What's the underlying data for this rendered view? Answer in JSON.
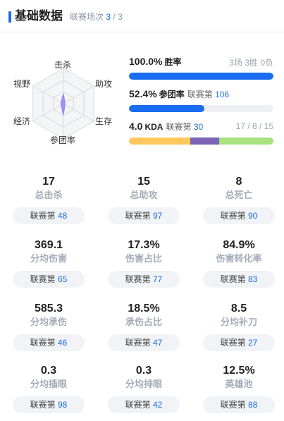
{
  "header": {
    "title": "基础数据",
    "subtitle_label": "联赛场次",
    "subtitle_current": "3",
    "subtitle_sep": "/",
    "subtitle_total": "3"
  },
  "radar": {
    "axes": [
      "击杀",
      "助攻",
      "生存",
      "参团率",
      "经济",
      "视野"
    ],
    "values": [
      0.28,
      0.05,
      0.05,
      0.32,
      0.08,
      0.08
    ],
    "fill_color": "#8f84f0"
  },
  "metrics": {
    "winrate": {
      "value": "100.0%",
      "name": "胜率",
      "detail": "3场 3胜 0负",
      "fraction": 1.0,
      "color": "#1a6cf0"
    },
    "participation": {
      "value": "52.4%",
      "name": "参团率",
      "rank_label": "联赛第",
      "rank": "106",
      "fraction": 0.524,
      "color": "#1a6cf0"
    },
    "kda": {
      "value": "4.0",
      "name": "KDA",
      "rank_label": "联赛第",
      "rank": "30",
      "detail": "17 / 8 / 15",
      "kills": 17,
      "deaths": 8,
      "assists": 15,
      "colors": [
        "#ffc85c",
        "#7a62b6",
        "#a8e27f"
      ]
    }
  },
  "stats": [
    {
      "value": "17",
      "label": "总击杀",
      "rank_label": "联赛第",
      "rank": "48"
    },
    {
      "value": "15",
      "label": "总助攻",
      "rank_label": "联赛第",
      "rank": "97"
    },
    {
      "value": "8",
      "label": "总死亡",
      "rank_label": "联赛第",
      "rank": "90"
    },
    {
      "value": "369.1",
      "label": "分均伤害",
      "rank_label": "联赛第",
      "rank": "65"
    },
    {
      "value": "17.3%",
      "label": "伤害占比",
      "rank_label": "联赛第",
      "rank": "77"
    },
    {
      "value": "84.9%",
      "label": "伤害转化率",
      "rank_label": "联赛第",
      "rank": "83"
    },
    {
      "value": "585.3",
      "label": "分均承伤",
      "rank_label": "联赛第",
      "rank": "46"
    },
    {
      "value": "18.5%",
      "label": "承伤占比",
      "rank_label": "联赛第",
      "rank": "47"
    },
    {
      "value": "8.5",
      "label": "分均补刀",
      "rank_label": "联赛第",
      "rank": "27"
    },
    {
      "value": "0.3",
      "label": "分均插眼",
      "rank_label": "联赛第",
      "rank": "98"
    },
    {
      "value": "0.3",
      "label": "分均排眼",
      "rank_label": "联赛第",
      "rank": "42"
    },
    {
      "value": "12.5%",
      "label": "英雄池",
      "rank_label": "联赛第",
      "rank": "88"
    }
  ]
}
